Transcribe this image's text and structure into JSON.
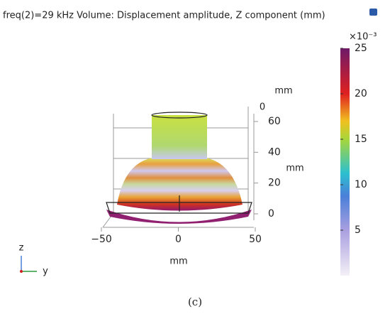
{
  "chart_data": {
    "type": "surface3d",
    "title": "freq(2)=29 kHz  Volume: Displacement amplitude, Z component (mm)",
    "colorbar": {
      "lim": [
        0,
        25
      ],
      "ticks": [
        5,
        10,
        15,
        20,
        25
      ],
      "exponent_label": "×10⁻³"
    },
    "xlabel": "mm",
    "xlim": [
      -50,
      50
    ],
    "xticks": [
      {
        "value": -50,
        "label": "−50"
      },
      0,
      50
    ],
    "zlabel": "mm",
    "zlim": [
      0,
      60
    ],
    "zticks": [
      0,
      20,
      40,
      60
    ],
    "ylabel": "mm",
    "yticks": [
      0
    ],
    "triad": {
      "z": "z",
      "y": "y"
    }
  },
  "caption": "(c)"
}
